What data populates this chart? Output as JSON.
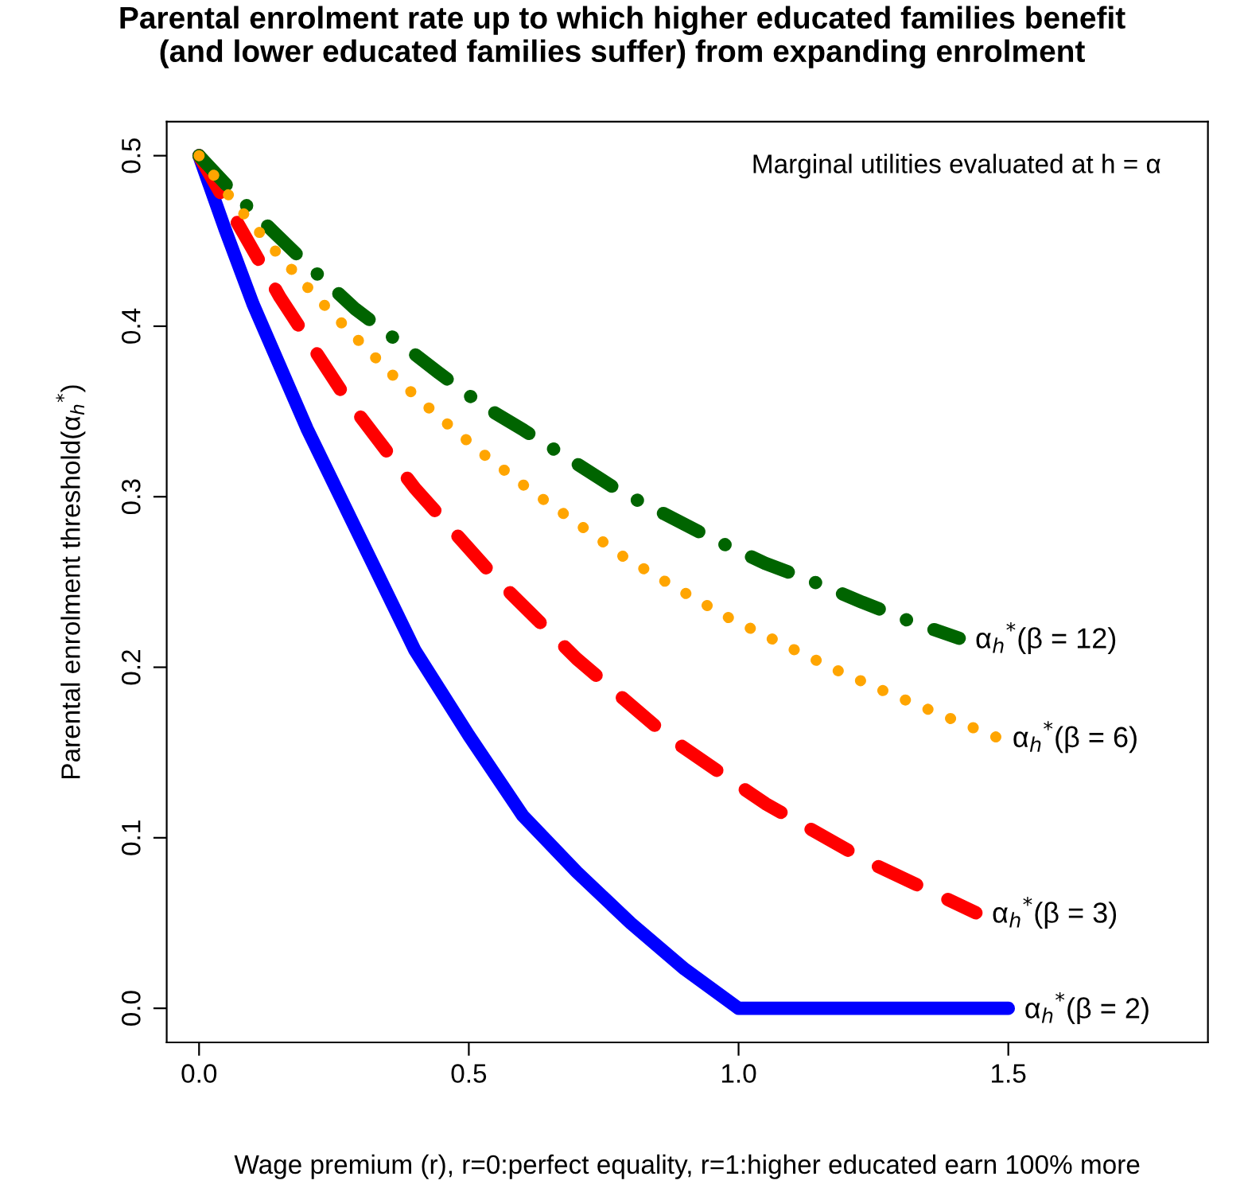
{
  "chart_data": {
    "type": "line",
    "title": "Parental enrolment rate up to which higher educated families benefit\n(and lower educated families suffer) from expanding enrolment",
    "xlabel": "Wage premium (r), r=0:perfect equality, r=1:higher educated earn 100% more",
    "ylabel": "Parental enrolment threshold(α$_{h}$$^{*}$)",
    "annotations": [
      "Marginal utilities evaluated at h = α"
    ],
    "xlim": [
      -0.06,
      1.87
    ],
    "ylim": [
      -0.02,
      0.52
    ],
    "xticks": [
      {
        "value": 0,
        "label": "0.0"
      },
      0.5,
      {
        "value": 1,
        "label": "1.0"
      },
      1.5
    ],
    "yticks": [
      {
        "value": 0,
        "label": "0.0"
      },
      0.1,
      0.2,
      0.3,
      0.4,
      0.5
    ],
    "grid": false,
    "legend": false,
    "series": [
      {
        "name": "α$_{h}$$^{*}$(β = 2)",
        "color": "#0000ff",
        "line_style": "solid",
        "x": [
          0,
          0.048,
          0.1,
          0.2,
          0.3,
          0.4,
          0.5,
          0.6,
          0.7,
          0.8,
          0.9,
          1.0,
          1.5
        ],
        "values": [
          0.5,
          0.457,
          0.413,
          0.34,
          0.275,
          0.21,
          0.16,
          0.113,
          0.08,
          0.05,
          0.023,
          0,
          0
        ]
      },
      {
        "name": "α$_{h}$$^{*}$(β = 3)",
        "color": "#ff0000",
        "line_style": "dashed",
        "x": [
          0,
          0.15,
          0.27,
          0.4,
          0.55,
          0.7,
          0.87,
          1.05,
          1.24,
          1.44
        ],
        "values": [
          0.5,
          0.417,
          0.359,
          0.305,
          0.252,
          0.205,
          0.159,
          0.12,
          0.086,
          0.056
        ]
      },
      {
        "name": "α$_{h}$$^{*}$(β = 6)",
        "color": "#ffa500",
        "line_style": "dotted",
        "x": [
          0,
          0.064,
          0.136,
          0.209,
          0.285,
          0.363,
          0.444,
          0.527,
          0.613,
          0.703,
          0.786,
          0.887,
          0.982,
          1.079,
          1.177,
          1.277,
          1.377,
          1.478
        ],
        "values": [
          0.5,
          0.473,
          0.446,
          0.42,
          0.395,
          0.37,
          0.347,
          0.325,
          0.304,
          0.284,
          0.265,
          0.246,
          0.229,
          0.214,
          0.199,
          0.185,
          0.172,
          0.159
        ]
      },
      {
        "name": "α$_{h}$$^{*}$(β = 12)",
        "color": "#006400",
        "line_style": "dashdot",
        "x": [
          0,
          0.074,
          0.136,
          0.211,
          0.29,
          0.357,
          0.443,
          0.528,
          0.602,
          0.692,
          0.781,
          0.862,
          0.954,
          1.049,
          1.133,
          1.23,
          1.326,
          1.409
        ],
        "values": [
          0.5,
          0.475,
          0.456,
          0.433,
          0.41,
          0.394,
          0.373,
          0.353,
          0.339,
          0.321,
          0.303,
          0.29,
          0.275,
          0.261,
          0.251,
          0.238,
          0.226,
          0.217
        ]
      }
    ]
  }
}
